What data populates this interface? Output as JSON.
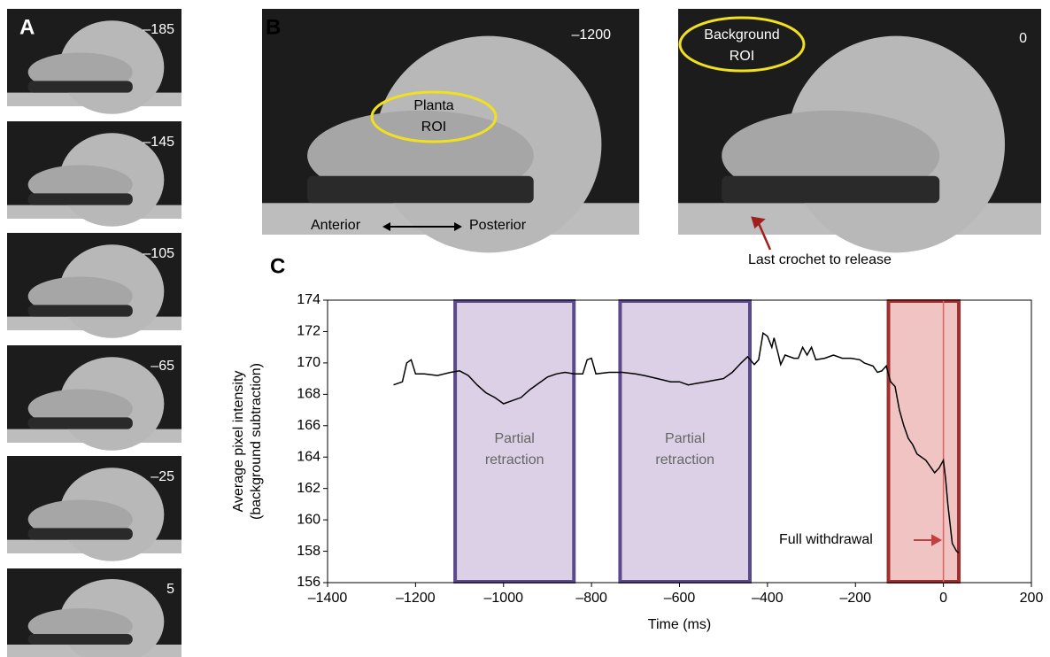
{
  "panel_a": {
    "label": "A",
    "frames": [
      "–185",
      "–145",
      "–105",
      "–65",
      "–25",
      "5"
    ]
  },
  "panel_b": {
    "label": "B",
    "left": {
      "time": "–1200",
      "roi": [
        "Planta",
        "ROI"
      ],
      "anterior": "Anterior",
      "posterior": "Posterior"
    },
    "right": {
      "time": "0",
      "roi": [
        "Background",
        "ROI"
      ],
      "annotation": "Last crochet to release"
    }
  },
  "chart_data": {
    "type": "line",
    "panel_label": "C",
    "xlabel": "Time (ms)",
    "ylabel": [
      "Average pixel intensity",
      "(background subtraction)"
    ],
    "x": [
      -1250,
      -1240,
      -1230,
      -1220,
      -1210,
      -1200,
      -1180,
      -1150,
      -1120,
      -1100,
      -1080,
      -1060,
      -1040,
      -1020,
      -1000,
      -980,
      -960,
      -940,
      -920,
      -900,
      -880,
      -860,
      -840,
      -820,
      -810,
      -800,
      -790,
      -760,
      -730,
      -700,
      -680,
      -650,
      -620,
      -600,
      -580,
      -560,
      -540,
      -520,
      -500,
      -480,
      -460,
      -445,
      -430,
      -420,
      -410,
      -400,
      -390,
      -385,
      -375,
      -370,
      -360,
      -340,
      -330,
      -320,
      -310,
      -300,
      -290,
      -270,
      -250,
      -230,
      -210,
      -190,
      -180,
      -160,
      -150,
      -140,
      -130,
      -120,
      -110,
      -100,
      -90,
      -80,
      -70,
      -60,
      -40,
      -20,
      -10,
      0,
      5,
      10,
      20,
      30,
      35
    ],
    "series": [
      {
        "color": "#000000",
        "values": [
          168.6,
          168.7,
          168.8,
          170.0,
          170.2,
          169.3,
          169.3,
          169.2,
          169.4,
          169.5,
          169.2,
          168.6,
          168.1,
          167.8,
          167.4,
          167.6,
          167.8,
          168.3,
          168.7,
          169.1,
          169.3,
          169.4,
          169.3,
          169.3,
          170.2,
          170.3,
          169.3,
          169.4,
          169.4,
          169.3,
          169.2,
          169.0,
          168.8,
          168.8,
          168.6,
          168.7,
          168.8,
          168.9,
          169.0,
          169.4,
          170.0,
          170.4,
          169.9,
          170.2,
          171.9,
          171.7,
          171.0,
          171.6,
          170.5,
          169.9,
          170.5,
          170.3,
          170.3,
          171.0,
          170.5,
          171.0,
          170.2,
          170.3,
          170.5,
          170.3,
          170.3,
          170.2,
          170.0,
          169.8,
          169.4,
          169.5,
          169.8,
          168.8,
          168.5,
          167.0,
          166.0,
          165.2,
          164.8,
          164.2,
          163.8,
          163.0,
          163.3,
          163.8,
          162.6,
          161.0,
          158.5,
          158.0,
          157.9
        ]
      }
    ],
    "xlim": [
      -1400,
      200
    ],
    "ylim": [
      156,
      174
    ],
    "xticks": [
      {
        "value": -1400,
        "label": "–1400"
      },
      {
        "value": -1200,
        "label": "–1200"
      },
      {
        "value": -1000,
        "label": "–1000"
      },
      {
        "value": -800,
        "label": "–800"
      },
      {
        "value": -600,
        "label": "–600"
      },
      {
        "value": -400,
        "label": "–400"
      },
      {
        "value": -200,
        "label": "–200"
      },
      0,
      200
    ],
    "yticks": [
      156,
      158,
      160,
      162,
      164,
      166,
      168,
      170,
      172,
      174
    ],
    "regions": [
      {
        "x": [
          -1110,
          -840
        ],
        "color": "#5b4a8b",
        "fill": "#dcd0e6",
        "label": [
          "Partial",
          "retraction"
        ]
      },
      {
        "x": [
          -735,
          -440
        ],
        "color": "#5b4a8b",
        "fill": "#dcd0e6",
        "label": [
          "Partial",
          "retraction"
        ]
      },
      {
        "x": [
          -125,
          35
        ],
        "color": "#a03030",
        "fill": "#f0c4c2"
      }
    ],
    "vline": 0,
    "annotation": "Full withdrawal"
  }
}
